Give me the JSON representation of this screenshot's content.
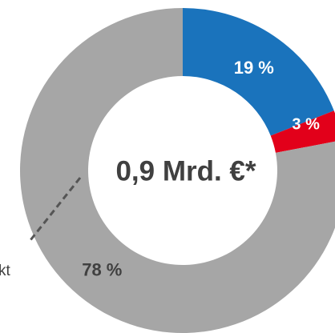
{
  "chart_data": {
    "type": "donut",
    "values": [
      19,
      3,
      78
    ],
    "value_labels": [
      "19 %",
      "3 %",
      "78 %"
    ],
    "colors": [
      "#1a73bc",
      "#e2001a",
      "#a6a6a6"
    ],
    "label_colors": [
      "#ffffff",
      "#ffffff",
      "#404040"
    ],
    "center_label": "0,9 Mrd. €*",
    "annotation": "kt"
  }
}
